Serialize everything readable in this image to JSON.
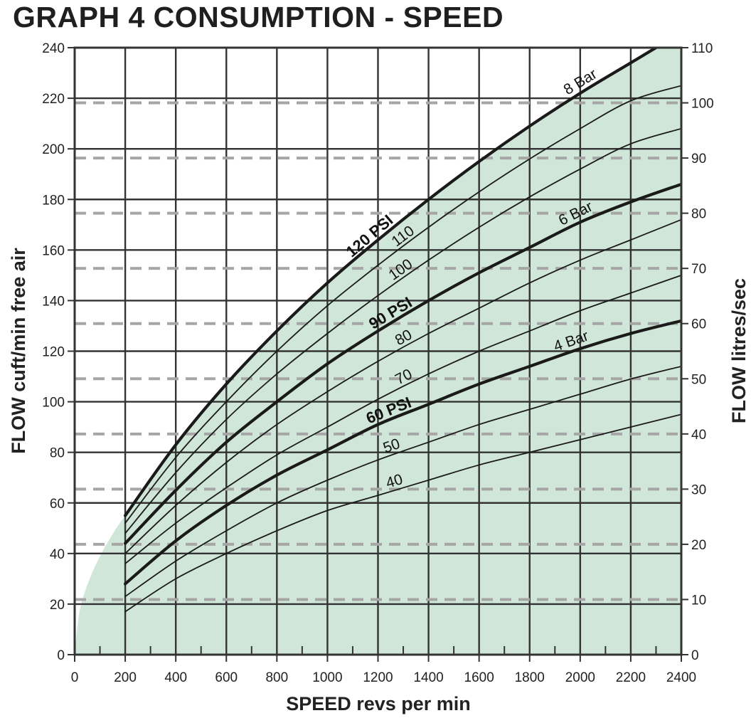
{
  "title": "GRAPH 4 CONSUMPTION - SPEED",
  "colors": {
    "fill": "#cfe6d9",
    "grid": "#333333",
    "dashed_grid": "#a6a6a6",
    "curve": "#1a1a1a",
    "text": "#222222"
  },
  "chart_data": {
    "type": "line",
    "title": "GRAPH 4 CONSUMPTION - SPEED",
    "xlabel": "SPEED revs per min",
    "ylabel": "FLOW cuft/min free air",
    "y2label": "FLOW litres/sec",
    "xlim": [
      0,
      2400
    ],
    "ylim": [
      0,
      240
    ],
    "y2lim": [
      0,
      110
    ],
    "x_ticks": [
      0,
      200,
      400,
      600,
      800,
      1000,
      1200,
      1400,
      1600,
      1800,
      2000,
      2200,
      2400
    ],
    "y_ticks": [
      0,
      20,
      40,
      60,
      80,
      100,
      120,
      140,
      160,
      180,
      200,
      220,
      240
    ],
    "y2_ticks": [
      0,
      10,
      20,
      30,
      40,
      50,
      60,
      70,
      80,
      90,
      100,
      110
    ],
    "x_minor_step": 100,
    "grid": true,
    "curve_start_speed": 200,
    "series": [
      {
        "name": "120 PSI",
        "label2": "8 Bar",
        "bold": true,
        "x": [
          200,
          400,
          600,
          800,
          1000,
          1200,
          1400,
          1600,
          1800,
          2000,
          2200,
          2300
        ],
        "y": [
          55,
          83,
          107,
          128,
          147,
          164,
          180,
          195,
          209,
          222,
          234,
          240
        ]
      },
      {
        "name": "110",
        "bold": false,
        "x": [
          200,
          400,
          600,
          800,
          1000,
          1200,
          1400,
          1600,
          1800,
          2000,
          2200,
          2400
        ],
        "y": [
          52,
          78,
          100,
          120,
          138,
          154,
          169,
          183,
          196,
          208,
          219,
          225
        ]
      },
      {
        "name": "100",
        "bold": false,
        "x": [
          200,
          400,
          600,
          800,
          1000,
          1200,
          1400,
          1600,
          1800,
          2000,
          2200,
          2400
        ],
        "y": [
          48,
          72,
          93,
          111,
          127,
          142,
          156,
          169,
          181,
          192,
          202,
          208
        ]
      },
      {
        "name": "90 PSI",
        "label2": "6 Bar",
        "bold": true,
        "x": [
          200,
          400,
          600,
          800,
          1000,
          1200,
          1400,
          1600,
          1800,
          2000,
          2200,
          2400
        ],
        "y": [
          44,
          65,
          84,
          100,
          115,
          128,
          140,
          151,
          161,
          171,
          179,
          186
        ]
      },
      {
        "name": "80",
        "bold": false,
        "x": [
          200,
          400,
          600,
          800,
          1000,
          1200,
          1400,
          1600,
          1800,
          2000,
          2200,
          2400
        ],
        "y": [
          40,
          59,
          76,
          91,
          104,
          116,
          127,
          137,
          147,
          156,
          164,
          172
        ]
      },
      {
        "name": "70",
        "bold": false,
        "x": [
          200,
          400,
          600,
          800,
          1000,
          1200,
          1400,
          1600,
          1800,
          2000,
          2200,
          2400
        ],
        "y": [
          36,
          52,
          66,
          79,
          90,
          101,
          111,
          120,
          128,
          136,
          143,
          150
        ]
      },
      {
        "name": "60 PSI",
        "label2": "4 Bar",
        "bold": true,
        "x": [
          200,
          400,
          600,
          800,
          1000,
          1200,
          1400,
          1600,
          1800,
          2000,
          2200,
          2400
        ],
        "y": [
          28,
          45,
          59,
          71,
          81,
          91,
          99,
          107,
          114,
          121,
          127,
          132
        ]
      },
      {
        "name": "50",
        "bold": false,
        "x": [
          200,
          400,
          600,
          800,
          1000,
          1200,
          1400,
          1600,
          1800,
          2000,
          2200,
          2400
        ],
        "y": [
          23,
          37,
          49,
          60,
          69,
          77,
          84,
          91,
          97,
          103,
          109,
          114
        ]
      },
      {
        "name": "40",
        "bold": false,
        "x": [
          200,
          400,
          600,
          800,
          1000,
          1200,
          1400,
          1600,
          1800,
          2000,
          2200,
          2400
        ],
        "y": [
          17,
          30,
          40,
          49,
          57,
          63,
          69,
          75,
          80,
          85,
          90,
          95
        ]
      }
    ]
  }
}
